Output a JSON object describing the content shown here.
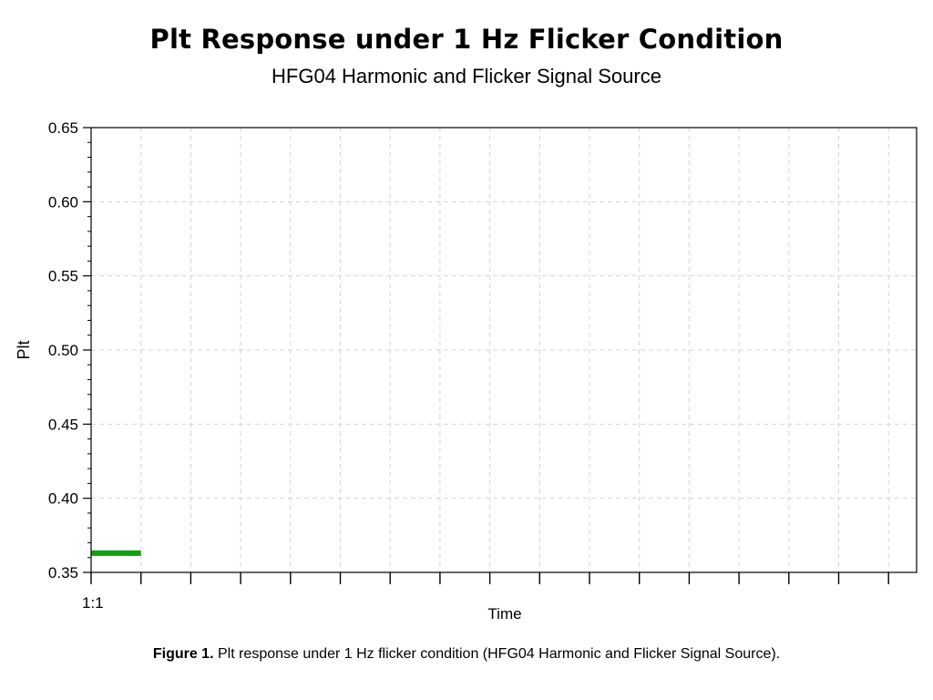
{
  "figure": {
    "title": "Plt Response under 1 Hz Flicker Condition",
    "subtitle": "HFG04 Harmonic and Flicker Signal Source",
    "caption_label": "Figure 1.",
    "caption_text": "Plt response under 1 Hz flicker condition  (HFG04 Harmonic and Flicker Signal Source)."
  },
  "chart_data": {
    "type": "line",
    "xlabel": "Time",
    "ylabel": "Plt",
    "x_tick_labels": [
      "1:1"
    ],
    "x_slots": 17,
    "ylim": [
      0.35,
      0.65
    ],
    "y_ticks": [
      "0.35",
      "0.40",
      "0.45",
      "0.50",
      "0.55",
      "0.60",
      "0.65"
    ],
    "grid": true,
    "series": [
      {
        "color": "#139e13",
        "points": [
          {
            "slot": 0,
            "value": 0.363
          },
          {
            "slot": 1,
            "value": 0.363
          }
        ]
      }
    ]
  }
}
